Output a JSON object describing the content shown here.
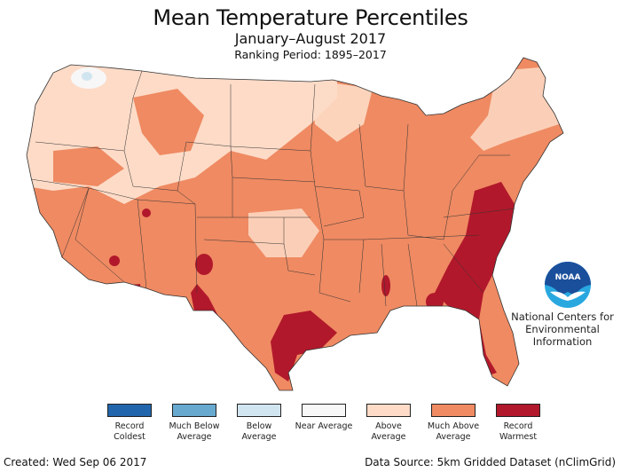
{
  "header": {
    "title": "Mean Temperature Percentiles",
    "subtitle": "January–August 2017",
    "ranking_period": "Ranking Period: 1895–2017"
  },
  "map": {
    "region": "Contiguous United States",
    "dominant_category": "Much Above Average",
    "hotspots_record_warmest": [
      "Southeast Atlantic coast",
      "Florida",
      "Texas Gulf coast",
      "Southern Arizona",
      "West Texas",
      "Louisiana coast"
    ]
  },
  "legend": {
    "items": [
      {
        "label": "Record Coldest",
        "color": "#2166ac"
      },
      {
        "label": "Much Below Average",
        "color": "#67a9cf"
      },
      {
        "label": "Below Average",
        "color": "#d1e5f0"
      },
      {
        "label": "Near Average",
        "color": "#f7f7f7"
      },
      {
        "label": "Above Average",
        "color": "#fddbc7"
      },
      {
        "label": "Much Above Average",
        "color": "#ef8a62"
      },
      {
        "label": "Record Warmest",
        "color": "#b2182b"
      }
    ]
  },
  "logo": {
    "icon": "noaa-logo-icon",
    "acronym": "NOAA",
    "org_line1": "National Centers for",
    "org_line2": "Environmental",
    "org_line3": "Information"
  },
  "footer": {
    "created": "Created: Wed Sep 06 2017",
    "source": "Data Source: 5km Gridded Dataset (nClimGrid)"
  }
}
